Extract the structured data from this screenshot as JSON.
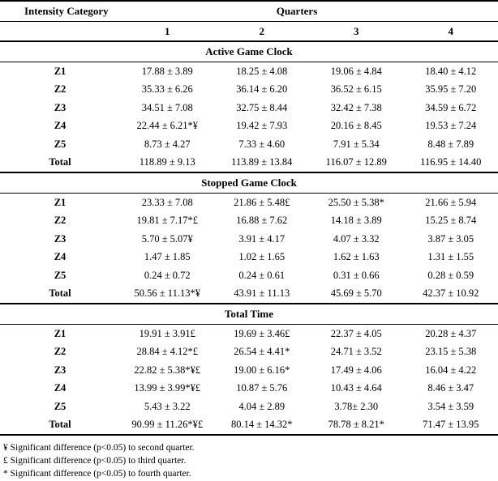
{
  "table": {
    "header": {
      "row_label_header": "Intensity Category",
      "quarters_label": "Quarters",
      "quarter_cols": [
        "1",
        "2",
        "3",
        "4"
      ]
    },
    "sections": [
      {
        "title": "Active Game Clock",
        "rows": [
          {
            "label": "Z1",
            "values": [
              "17.88 ± 3.89",
              "18.25 ± 4.08",
              "19.06 ± 4.84",
              "18.40 ± 4.12"
            ]
          },
          {
            "label": "Z2",
            "values": [
              "35.33 ± 6.26",
              "36.14 ± 6.20",
              "36.52 ± 6.15",
              "35.95 ± 7.20"
            ]
          },
          {
            "label": "Z3",
            "values": [
              "34.51 ± 7.08",
              "32.75 ± 8.44",
              "32.42 ± 7.38",
              "34.59 ± 6.72"
            ]
          },
          {
            "label": "Z4",
            "values": [
              "22.44 ± 6.21*¥",
              "19.42 ± 7.93",
              "20.16 ± 8.45",
              "19.53 ± 7.24"
            ]
          },
          {
            "label": "Z5",
            "values": [
              "8.73 ± 4.27",
              "7.33 ± 4.60",
              "7.91 ± 5.34",
              "8.48 ± 7.89"
            ]
          },
          {
            "label": "Total",
            "values": [
              "118.89 ± 9.13",
              "113.89 ± 13.84",
              "116.07 ± 12.89",
              "116.95 ± 14.40"
            ]
          }
        ]
      },
      {
        "title": "Stopped Game Clock",
        "rows": [
          {
            "label": "Z1",
            "values": [
              "23.33 ± 7.08",
              "21.86 ± 5.48£",
              "25.50 ± 5.38*",
              "21.66 ± 5.94"
            ]
          },
          {
            "label": "Z2",
            "values": [
              "19.81 ± 7.17*£",
              "16.88 ± 7.62",
              "14.18 ± 3.89",
              "15.25 ± 8.74"
            ]
          },
          {
            "label": "Z3",
            "values": [
              "5.70 ± 5.07¥",
              "3.91 ± 4.17",
              "4.07 ± 3.32",
              "3.87 ± 3.05"
            ]
          },
          {
            "label": "Z4",
            "values": [
              "1.47 ± 1.85",
              "1.02 ± 1.65",
              "1.62 ± 1.63",
              "1.31 ± 1.55"
            ]
          },
          {
            "label": "Z5",
            "values": [
              "0.24 ± 0.72",
              "0.24 ± 0.61",
              "0.31 ± 0.66",
              "0.28 ± 0.59"
            ]
          },
          {
            "label": "Total",
            "values": [
              "50.56 ± 11.13*¥",
              "43.91 ± 11.13",
              "45.69 ± 5.70",
              "42.37 ± 10.92"
            ]
          }
        ]
      },
      {
        "title": "Total Time",
        "rows": [
          {
            "label": "Z1",
            "values": [
              "19.91 ± 3.91£",
              "19.69 ± 3.46£",
              "22.37 ± 4.05",
              "20.28 ± 4.37"
            ]
          },
          {
            "label": "Z2",
            "values": [
              "28.84 ± 4.12*£",
              "26.54 ± 4.41*",
              "24.71 ± 3.52",
              "23.15 ± 5.38"
            ]
          },
          {
            "label": "Z3",
            "values": [
              "22.82 ± 5.38*¥£",
              "19.00 ± 6.16*",
              "17.49 ± 4.06",
              "16.04 ± 4.22"
            ]
          },
          {
            "label": "Z4",
            "values": [
              "13.99 ± 3.99*¥£",
              "10.87 ± 5.76",
              "10.43 ± 4.64",
              "8.46 ± 3.47"
            ]
          },
          {
            "label": "Z5",
            "values": [
              "5.43 ± 3.22",
              "4.04 ± 2.89",
              "3.78± 2.30",
              "3.54 ± 3.59"
            ]
          },
          {
            "label": "Total",
            "values": [
              "90.99 ± 11.26*¥£",
              "80.14 ± 14.32*",
              "78.78 ± 8.21*",
              "71.47 ± 13.95"
            ]
          }
        ]
      }
    ]
  },
  "footnotes": [
    "¥ Significant difference (p<0.05) to second quarter.",
    "£ Significant difference (p<0.05) to third quarter.",
    "* Significant difference (p<0.05) to fourth quarter."
  ]
}
